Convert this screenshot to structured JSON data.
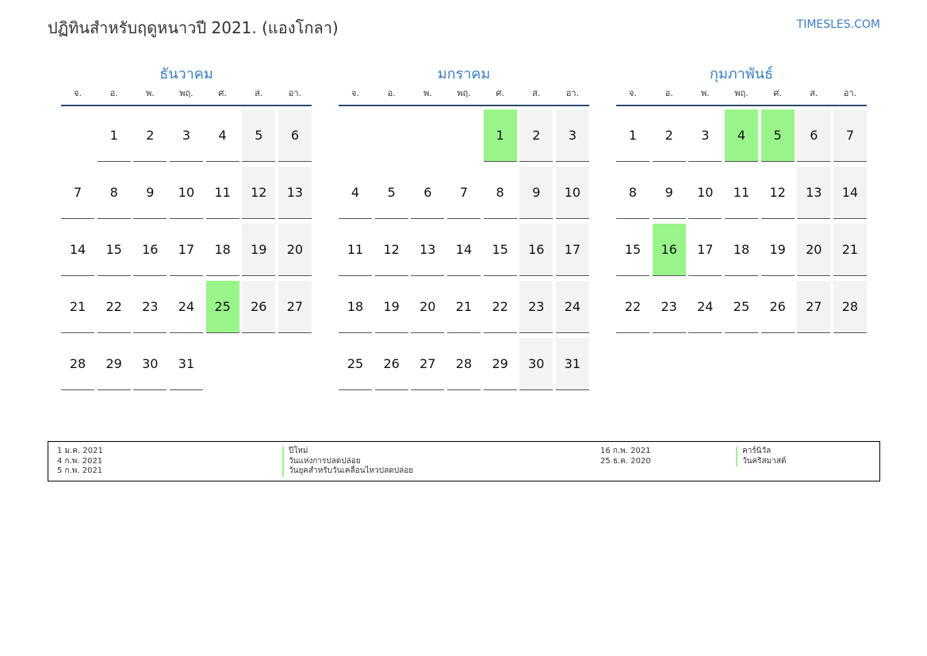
{
  "title": "ปฏิทินสำหรับฤดูหนาวปี 2021. (แองโกลา)",
  "brand": "TIMESLES.COM",
  "weekday_labels": [
    "จ.",
    "อ.",
    "พ.",
    "พฤ.",
    "ศ.",
    "ส.",
    "อา."
  ],
  "months": [
    {
      "name": "ธันวาคม",
      "offset": 1,
      "days": 31,
      "holidays": [
        25
      ]
    },
    {
      "name": "มกราคม",
      "offset": 4,
      "days": 31,
      "holidays": [
        1
      ]
    },
    {
      "name": "กุมภาพันธ์",
      "offset": 0,
      "days": 28,
      "holidays": [
        4,
        5,
        16
      ]
    }
  ],
  "legend": {
    "left_dates": [
      "1 ม.ค. 2021",
      "4 ก.พ. 2021",
      "5 ก.พ. 2021"
    ],
    "left_names": [
      "ปีใหม่",
      "วันแห่งการปลดปล่อย",
      "วันยุคสำหรับวันเคลื่อนไหวปลดปล่อย"
    ],
    "right_dates": [
      "16 ก.พ. 2021",
      "25 ธ.ค. 2020"
    ],
    "right_names": [
      "คาร์นิวัล",
      "วันคริสมาสต์"
    ]
  },
  "colors": {
    "accent": "#3a7ebf",
    "holiday": "#99f58a",
    "weekend": "#f3f3f3"
  }
}
